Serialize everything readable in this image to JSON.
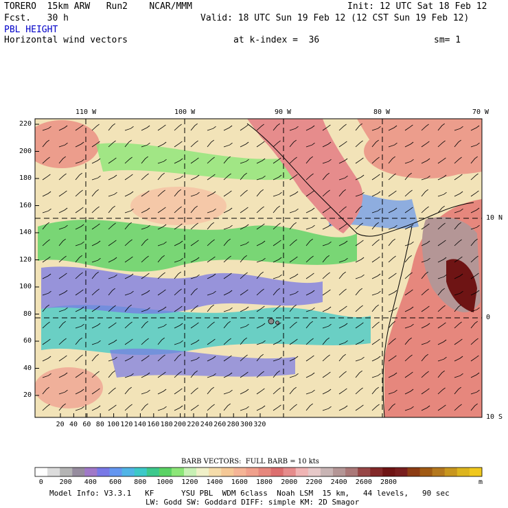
{
  "header": {
    "model": "TORERO  15km ARW   Run2    NCAR/MMM",
    "init": "Init: 12 UTC Sat 18 Feb 12",
    "fcst": "Fcst.   30 h",
    "valid": "Valid: 18 UTC Sun 19 Feb 12 (12 CST Sun 19 Feb 12)",
    "field": "PBL HEIGHT",
    "field_color": "#0000c8",
    "vectors": "Horizontal wind vectors",
    "kindex": "at k-index =  36",
    "sm": "sm= 1"
  },
  "map": {
    "lon_labels": [
      "110 W",
      "100 W",
      "90 W",
      "80 W",
      "70 W"
    ],
    "lat_labels": [
      "10 N",
      "0",
      "10 S"
    ],
    "y_ticks": [
      "220",
      "200",
      "180",
      "160",
      "140",
      "120",
      "100",
      "80",
      "60",
      "40",
      "20"
    ],
    "x_ticks": [
      "20",
      "40",
      "60",
      "80",
      "100",
      "120",
      "140",
      "160",
      "180",
      "200",
      "220",
      "240",
      "260",
      "280",
      "300",
      "320"
    ]
  },
  "colorbar": {
    "title": "BARB VECTORS:  FULL BARB = 10 kts",
    "unit": "m",
    "labels": [
      "0",
      "200",
      "400",
      "600",
      "800",
      "1000",
      "1200",
      "1400",
      "1600",
      "1800",
      "2000",
      "2200",
      "2400",
      "2600",
      "2800"
    ],
    "colors": [
      "#ffffff",
      "#dcdcdc",
      "#b4b4b4",
      "#968c9e",
      "#a078c8",
      "#7878e6",
      "#6496f0",
      "#50b4e6",
      "#3cc8c8",
      "#3cc88c",
      "#5ad264",
      "#8ce678",
      "#c8f0b4",
      "#f0f0c8",
      "#f5dcaa",
      "#f5c896",
      "#f5b496",
      "#f0a08c",
      "#e6877d",
      "#dc6e6e",
      "#e68c8c",
      "#f0b4b4",
      "#e6c8c8",
      "#c8b4b4",
      "#b49696",
      "#aa7878",
      "#964646",
      "#822828",
      "#6e1414",
      "#781e1e",
      "#8c3c14",
      "#a05a14",
      "#b4781e",
      "#c8961e",
      "#dcb41e",
      "#f0c81e"
    ]
  },
  "footer": {
    "line1": "Model Info: V3.3.1   KF      YSU PBL  WDM 6class  Noah LSM  15 km,   44 levels,   90 sec",
    "line2": "LW: Godd SW: Goddard DIFF: simple KM: 2D Smagor"
  }
}
